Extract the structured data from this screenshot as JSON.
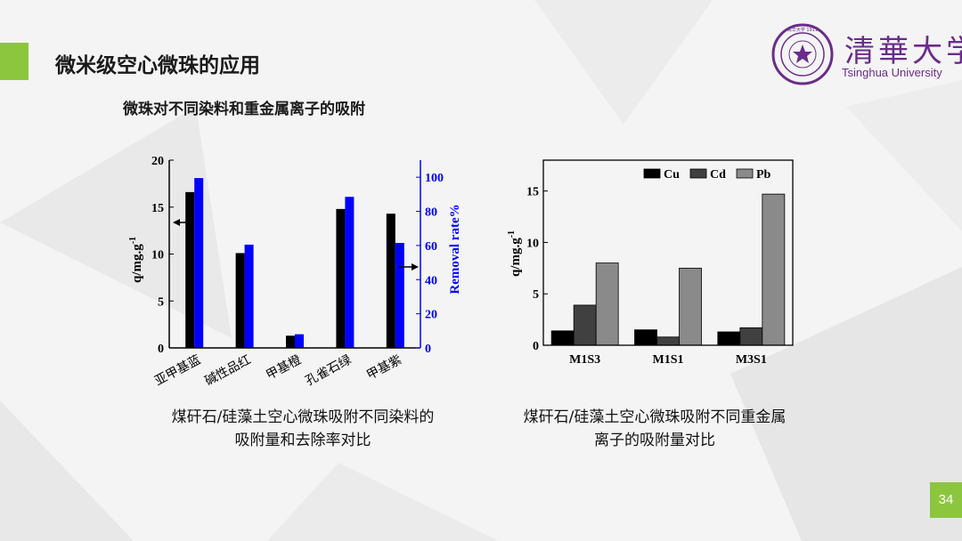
{
  "header": {
    "title": "微米级空心微珠的应用",
    "subtitle": "微珠对不同染料和重金属离子的吸附"
  },
  "logo": {
    "name_cn": "清華大学",
    "name_en": "Tsinghua University",
    "seal_text": "清华大学 1911"
  },
  "colors": {
    "accent": "#8cc63f",
    "brand": "#6a2c8a",
    "series_black": "#000000",
    "series_blue": "#0000ff",
    "cu": "#000000",
    "cd": "#404040",
    "pb": "#8a8a8a"
  },
  "chart_data": [
    {
      "type": "bar",
      "categories": [
        "亚甲基蓝",
        "碱性品红",
        "甲基橙",
        "孔雀石绿",
        "甲基紫"
      ],
      "series": [
        {
          "values": [
            16.6,
            10.1,
            1.3,
            14.8,
            14.3
          ]
        },
        {
          "values": [
            99.5,
            60.5,
            8.0,
            88.5,
            61.5
          ]
        }
      ],
      "ylabel": "q/mg.g-1",
      "ylabel_main": "q/mg.g",
      "ylabel_sup": "-1",
      "ylabel_right": "Removal rate%",
      "ylim": [
        0,
        20
      ],
      "ylim_right": [
        0,
        110
      ],
      "yticks": [
        0,
        5,
        10,
        15,
        20
      ],
      "yticks_right": [
        0,
        20,
        40,
        60,
        80,
        100
      ],
      "grid": false,
      "legend": "none"
    },
    {
      "type": "bar",
      "categories": [
        "M1S3",
        "M1S1",
        "M3S1"
      ],
      "series": [
        {
          "name": "Cu",
          "values": [
            1.4,
            1.5,
            1.3
          ]
        },
        {
          "name": "Cd",
          "values": [
            3.9,
            0.8,
            1.7
          ]
        },
        {
          "name": "Pb",
          "values": [
            8.0,
            7.5,
            14.7
          ]
        }
      ],
      "ylabel": "q/mg.g-1",
      "ylabel_main": "q/mg.g",
      "ylabel_sup": "-1",
      "ylim": [
        0,
        18
      ],
      "yticks": [
        0,
        5,
        10,
        15
      ],
      "grid": false,
      "legend": "top-right"
    }
  ],
  "captions": {
    "left_line1": "煤矸石/硅藻土空心微珠吸附不同染料的",
    "left_line2": "吸附量和去除率对比",
    "right_line1": "煤矸石/硅藻土空心微珠吸附不同重金属",
    "right_line2": "离子的吸附量对比"
  },
  "page_number": "34"
}
